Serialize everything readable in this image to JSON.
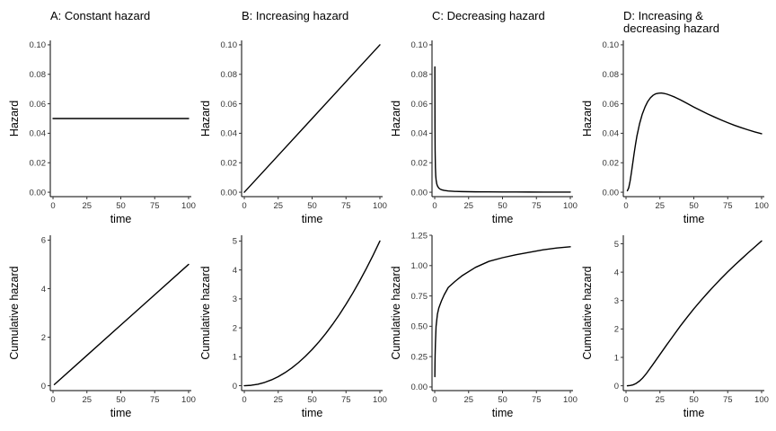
{
  "chart_data": [
    {
      "type": "line",
      "title": "A: Constant hazard",
      "xlabel": "time",
      "ylabel": "Hazard",
      "xlim": [
        -2,
        102
      ],
      "ylim": [
        -0.003,
        0.103
      ],
      "xticks": [
        0,
        25,
        50,
        75,
        100
      ],
      "xtick_labels": [
        "0",
        "25",
        "50",
        "75",
        "100"
      ],
      "yticks": [
        0,
        0.02,
        0.04,
        0.06,
        0.08,
        0.1
      ],
      "ytick_labels": [
        "0.00",
        "0.02",
        "0.04",
        "0.06",
        "0.08",
        "0.10"
      ],
      "grid": false,
      "series": [
        {
          "x": [
            0,
            25,
            50,
            75,
            100
          ],
          "y": [
            0.05,
            0.05,
            0.05,
            0.05,
            0.05
          ]
        }
      ]
    },
    {
      "type": "line",
      "title": "B: Increasing hazard",
      "xlabel": "time",
      "ylabel": "Hazard",
      "xlim": [
        -2,
        102
      ],
      "ylim": [
        -0.003,
        0.103
      ],
      "xticks": [
        0,
        25,
        50,
        75,
        100
      ],
      "xtick_labels": [
        "0",
        "25",
        "50",
        "75",
        "100"
      ],
      "yticks": [
        0,
        0.02,
        0.04,
        0.06,
        0.08,
        0.1
      ],
      "ytick_labels": [
        "0.00",
        "0.02",
        "0.04",
        "0.06",
        "0.08",
        "0.10"
      ],
      "grid": false,
      "series": [
        {
          "x": [
            0,
            25,
            50,
            75,
            100
          ],
          "y": [
            0.0,
            0.025,
            0.05,
            0.075,
            0.1
          ]
        }
      ]
    },
    {
      "type": "line",
      "title": "C: Decreasing hazard",
      "xlabel": "time",
      "ylabel": "Hazard",
      "xlim": [
        -2,
        102
      ],
      "ylim": [
        -0.003,
        0.103
      ],
      "xticks": [
        0,
        25,
        50,
        75,
        100
      ],
      "xtick_labels": [
        "0",
        "25",
        "50",
        "75",
        "100"
      ],
      "yticks": [
        0,
        0.02,
        0.04,
        0.06,
        0.08,
        0.1
      ],
      "ytick_labels": [
        "0.00",
        "0.02",
        "0.04",
        "0.06",
        "0.08",
        "0.10"
      ],
      "grid": false,
      "series": [
        {
          "x": [
            0.1,
            0.2,
            0.3,
            0.5,
            0.75,
            1,
            1.5,
            2,
            3,
            4,
            5,
            7,
            10,
            15,
            20,
            30,
            40,
            50,
            60,
            70,
            80,
            90,
            100
          ],
          "y": [
            0.085,
            0.043,
            0.0283,
            0.017,
            0.0113,
            0.0085,
            0.0057,
            0.0043,
            0.0028,
            0.0021,
            0.0017,
            0.0012,
            0.00085,
            0.00057,
            0.00043,
            0.00028,
            0.00021,
            0.00017,
            0.00014,
            0.00012,
            0.00011,
            0.0001,
            9e-05
          ]
        }
      ]
    },
    {
      "type": "line",
      "title": "D: Increasing &\ndecreasing hazard",
      "xlabel": "time",
      "ylabel": "Hazard",
      "xlim": [
        -2,
        102
      ],
      "ylim": [
        -0.003,
        0.103
      ],
      "xticks": [
        0,
        25,
        50,
        75,
        100
      ],
      "xtick_labels": [
        "0",
        "25",
        "50",
        "75",
        "100"
      ],
      "yticks": [
        0,
        0.02,
        0.04,
        0.06,
        0.08,
        0.1
      ],
      "ytick_labels": [
        "0.00",
        "0.02",
        "0.04",
        "0.06",
        "0.08",
        "0.10"
      ],
      "grid": false,
      "series": [
        {
          "x": [
            1,
            2,
            3,
            4,
            5,
            6,
            7,
            8,
            10,
            12,
            14,
            16,
            18,
            20,
            22,
            24,
            26,
            28,
            30,
            33,
            36,
            40,
            45,
            50,
            55,
            60,
            65,
            70,
            75,
            80,
            85,
            90,
            95,
            100
          ],
          "y": [
            0.001,
            0.003,
            0.0075,
            0.0135,
            0.02,
            0.0265,
            0.0325,
            0.038,
            0.0465,
            0.053,
            0.0578,
            0.0615,
            0.0641,
            0.0658,
            0.0668,
            0.0672,
            0.0673,
            0.067,
            0.0666,
            0.0656,
            0.0645,
            0.0627,
            0.0603,
            0.0578,
            0.0555,
            0.0532,
            0.0511,
            0.0491,
            0.0472,
            0.0454,
            0.0438,
            0.0423,
            0.0409,
            0.0397
          ]
        }
      ]
    },
    {
      "type": "line",
      "title": "",
      "xlabel": "time",
      "ylabel": "Cumulative hazard",
      "xlim": [
        -2,
        102
      ],
      "ylim": [
        -0.2,
        6.2
      ],
      "xticks": [
        0,
        25,
        50,
        75,
        100
      ],
      "xtick_labels": [
        "0",
        "25",
        "50",
        "75",
        "100"
      ],
      "yticks": [
        0,
        2,
        4,
        6
      ],
      "ytick_labels": [
        "0",
        "2",
        "4",
        "6"
      ],
      "grid": false,
      "series": [
        {
          "x": [
            1,
            25,
            50,
            75,
            100
          ],
          "y": [
            0.05,
            1.25,
            2.5,
            3.75,
            5.0
          ]
        }
      ]
    },
    {
      "type": "line",
      "title": "",
      "xlabel": "time",
      "ylabel": "Cumulative hazard",
      "xlim": [
        -2,
        102
      ],
      "ylim": [
        -0.17,
        5.2
      ],
      "xticks": [
        0,
        25,
        50,
        75,
        100
      ],
      "xtick_labels": [
        "0",
        "25",
        "50",
        "75",
        "100"
      ],
      "yticks": [
        0,
        1,
        2,
        3,
        4,
        5
      ],
      "ytick_labels": [
        "0",
        "1",
        "2",
        "3",
        "4",
        "5"
      ],
      "grid": false,
      "series": [
        {
          "x": [
            0,
            5,
            10,
            15,
            20,
            25,
            30,
            35,
            40,
            45,
            50,
            55,
            60,
            65,
            70,
            75,
            80,
            85,
            90,
            95,
            100
          ],
          "y": [
            0,
            0.0125,
            0.05,
            0.1125,
            0.2,
            0.3125,
            0.45,
            0.6125,
            0.8,
            1.0125,
            1.25,
            1.5125,
            1.8,
            2.1125,
            2.45,
            2.8125,
            3.2,
            3.6125,
            4.05,
            4.5125,
            5.0
          ]
        }
      ]
    },
    {
      "type": "line",
      "title": "",
      "xlabel": "time",
      "ylabel": "Cumulative hazard",
      "xlim": [
        -2,
        102
      ],
      "ylim": [
        -0.03,
        1.25
      ],
      "xticks": [
        0,
        25,
        50,
        75,
        100
      ],
      "xtick_labels": [
        "0",
        "25",
        "50",
        "75",
        "100"
      ],
      "yticks": [
        0,
        0.25,
        0.5,
        0.75,
        1.0,
        1.25
      ],
      "ytick_labels": [
        "0.00",
        "0.25",
        "0.50",
        "0.75",
        "1.00",
        "1.25"
      ],
      "grid": false,
      "series": [
        {
          "x": [
            0.1,
            0.2,
            0.3,
            0.5,
            0.75,
            1,
            1.5,
            2,
            3,
            4,
            5,
            7,
            10,
            15,
            20,
            30,
            40,
            50,
            60,
            70,
            80,
            90,
            100
          ],
          "y": [
            0.085,
            0.195,
            0.262,
            0.353,
            0.427,
            0.5,
            0.55,
            0.6,
            0.65,
            0.68,
            0.71,
            0.76,
            0.82,
            0.87,
            0.915,
            0.985,
            1.035,
            1.065,
            1.09,
            1.11,
            1.13,
            1.145,
            1.155
          ]
        }
      ]
    },
    {
      "type": "line",
      "title": "",
      "xlabel": "time",
      "ylabel": "Cumulative hazard",
      "xlim": [
        -2,
        102
      ],
      "ylim": [
        -0.17,
        5.3
      ],
      "xticks": [
        0,
        25,
        50,
        75,
        100
      ],
      "xtick_labels": [
        "0",
        "25",
        "50",
        "75",
        "100"
      ],
      "yticks": [
        0,
        1,
        2,
        3,
        4,
        5
      ],
      "ytick_labels": [
        "0",
        "1",
        "2",
        "3",
        "4",
        "5"
      ],
      "grid": false,
      "series": [
        {
          "x": [
            1,
            3,
            5,
            7,
            10,
            12,
            15,
            20,
            25,
            30,
            35,
            40,
            45,
            50,
            55,
            60,
            65,
            70,
            75,
            80,
            85,
            90,
            95,
            100
          ],
          "y": [
            0.0,
            0.01,
            0.03,
            0.07,
            0.17,
            0.26,
            0.43,
            0.76,
            1.1,
            1.44,
            1.77,
            2.1,
            2.41,
            2.71,
            2.99,
            3.26,
            3.52,
            3.77,
            4.01,
            4.24,
            4.46,
            4.68,
            4.89,
            5.1
          ]
        }
      ]
    }
  ]
}
